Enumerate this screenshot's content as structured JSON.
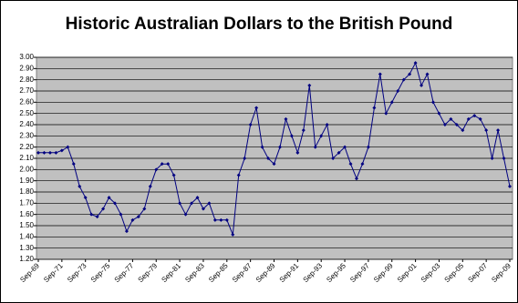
{
  "chart_data": {
    "type": "line",
    "title": "Historic Australian Dollars to the British Pound",
    "categories": [
      "Sep-69",
      null,
      null,
      null,
      "Sep-71",
      null,
      null,
      null,
      "Sep-73",
      null,
      null,
      null,
      "Sep-75",
      null,
      null,
      null,
      "Sep-77",
      null,
      null,
      null,
      "Sep-79",
      null,
      null,
      null,
      "Sep-81",
      null,
      null,
      null,
      "Sep-83",
      null,
      null,
      null,
      "Sep-85",
      null,
      null,
      null,
      "Sep-87",
      null,
      null,
      null,
      "Sep-89",
      null,
      null,
      null,
      "Sep-91",
      null,
      null,
      null,
      "Sep-93",
      null,
      null,
      null,
      "Sep-95",
      null,
      null,
      null,
      "Sep-97",
      null,
      null,
      null,
      "Sep-99",
      null,
      null,
      null,
      "Sep-01",
      null,
      null,
      null,
      "Sep-03",
      null,
      null,
      null,
      "Sep-05",
      null,
      null,
      null,
      "Sep-07",
      null,
      null,
      null,
      "Sep-09"
    ],
    "values": [
      2.15,
      2.15,
      2.15,
      2.15,
      2.17,
      2.2,
      2.05,
      1.85,
      1.75,
      1.6,
      1.58,
      1.65,
      1.75,
      1.7,
      1.6,
      1.45,
      1.55,
      1.58,
      1.65,
      1.85,
      2.0,
      2.05,
      2.05,
      1.95,
      1.7,
      1.6,
      1.7,
      1.75,
      1.65,
      1.7,
      1.55,
      1.55,
      1.55,
      1.42,
      1.95,
      2.1,
      2.4,
      2.55,
      2.2,
      2.1,
      2.05,
      2.2,
      2.45,
      2.3,
      2.15,
      2.35,
      2.75,
      2.2,
      2.3,
      2.4,
      2.1,
      2.15,
      2.2,
      2.05,
      1.92,
      2.05,
      2.2,
      2.55,
      2.85,
      2.5,
      2.6,
      2.7,
      2.8,
      2.85,
      2.95,
      2.75,
      2.85,
      2.6,
      2.5,
      2.4,
      2.45,
      2.4,
      2.35,
      2.45,
      2.48,
      2.45,
      2.35,
      2.1,
      2.35,
      2.1,
      1.85
    ],
    "color": "#000080",
    "ylim": [
      1.2,
      3.0
    ],
    "yticks": [
      {
        "value": 1.2,
        "label": "1.20"
      },
      {
        "value": 1.3,
        "label": "1.30"
      },
      {
        "value": 1.4,
        "label": "1.40"
      },
      {
        "value": 1.5,
        "label": "1.50"
      },
      {
        "value": 1.6,
        "label": "1.60"
      },
      {
        "value": 1.7,
        "label": "1.70"
      },
      {
        "value": 1.8,
        "label": "1.80"
      },
      {
        "value": 1.9,
        "label": "1.90"
      },
      {
        "value": 2.0,
        "label": "2.00"
      },
      {
        "value": 2.1,
        "label": "2.10"
      },
      {
        "value": 2.2,
        "label": "2.20"
      },
      {
        "value": 2.3,
        "label": "2.30"
      },
      {
        "value": 2.4,
        "label": "2.40"
      },
      {
        "value": 2.5,
        "label": "2.50"
      },
      {
        "value": 2.6,
        "label": "2.60"
      },
      {
        "value": 2.7,
        "label": "2.70"
      },
      {
        "value": 2.8,
        "label": "2.80"
      },
      {
        "value": 2.9,
        "label": "2.90"
      },
      {
        "value": 3.0,
        "label": "3.00"
      }
    ],
    "grid": true
  }
}
